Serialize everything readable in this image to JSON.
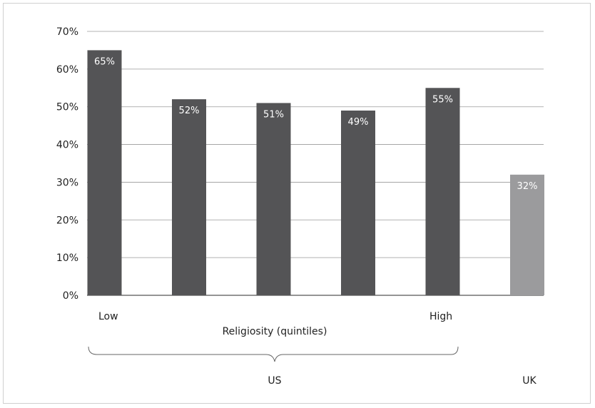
{
  "chart_data": {
    "type": "bar",
    "categories": [
      "Low",
      "",
      "",
      "",
      "High",
      "UK"
    ],
    "values": [
      65,
      52,
      51,
      49,
      55,
      32
    ],
    "data_labels": [
      "65%",
      "52%",
      "51%",
      "49%",
      "55%",
      "32%"
    ],
    "bar_colors": [
      "#545456",
      "#545456",
      "#545456",
      "#545456",
      "#545456",
      "#9b9b9d"
    ],
    "y_ticks": [
      "0%",
      "10%",
      "20%",
      "30%",
      "40%",
      "50%",
      "60%",
      "70%"
    ],
    "ylim": [
      0,
      70
    ],
    "grid": true,
    "xlabel": "Religiosity (quintiles)",
    "group_labels": {
      "us": "US",
      "uk": "UK"
    },
    "category_labels": {
      "low": "Low",
      "high": "High"
    }
  }
}
